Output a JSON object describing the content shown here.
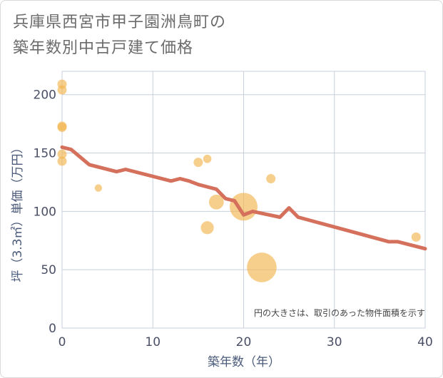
{
  "title_lines": [
    "兵庫県西宮市甲子園洲鳥町の",
    "築年数別中古戸建て価格"
  ],
  "chart_data": {
    "type": "scatter",
    "title": "兵庫県西宮市甲子園洲鳥町の築年数別中古戸建て価格",
    "xlabel": "築年数（年）",
    "ylabel": "坪（3.3㎡）単価（万円）",
    "xlim": [
      0,
      40
    ],
    "ylim": [
      0,
      220
    ],
    "xticks": [
      0,
      10,
      20,
      30,
      40
    ],
    "yticks": [
      0,
      50,
      100,
      150,
      200
    ],
    "grid": true,
    "note": "円の大きさは、取引のあった物件面積を示す",
    "colors": {
      "points": "#f2b64e",
      "line": "#d4705b",
      "grid": "#c8d0dc"
    },
    "points": [
      {
        "x": 0,
        "y": 209,
        "size": 1
      },
      {
        "x": 0,
        "y": 204,
        "size": 1
      },
      {
        "x": 0,
        "y": 173,
        "size": 1
      },
      {
        "x": 0,
        "y": 172,
        "size": 1
      },
      {
        "x": 0,
        "y": 149,
        "size": 1
      },
      {
        "x": 0,
        "y": 143,
        "size": 1
      },
      {
        "x": 4,
        "y": 120,
        "size": 0.8
      },
      {
        "x": 15,
        "y": 142,
        "size": 1
      },
      {
        "x": 16,
        "y": 145,
        "size": 0.9
      },
      {
        "x": 16,
        "y": 86,
        "size": 1.4
      },
      {
        "x": 17,
        "y": 108,
        "size": 1.6
      },
      {
        "x": 20,
        "y": 104,
        "size": 3.0
      },
      {
        "x": 22,
        "y": 52,
        "size": 3.2
      },
      {
        "x": 23,
        "y": 128,
        "size": 1
      },
      {
        "x": 39,
        "y": 78,
        "size": 1
      }
    ],
    "trend": {
      "x": [
        0,
        1,
        3,
        6,
        7,
        12,
        13,
        14,
        15,
        16,
        17,
        18,
        19,
        20,
        21,
        24,
        25,
        26,
        36,
        37,
        40
      ],
      "y": [
        155,
        153,
        140,
        134,
        136,
        126,
        128,
        126,
        123,
        121,
        119,
        111,
        109,
        97,
        100,
        95,
        103,
        95,
        74,
        74,
        68
      ]
    }
  }
}
